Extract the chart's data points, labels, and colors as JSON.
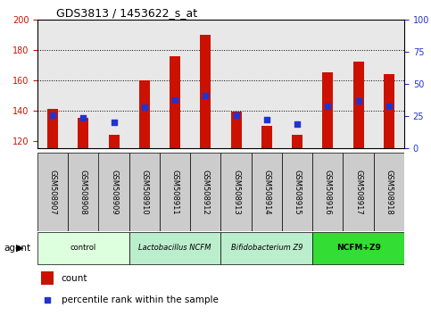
{
  "title": "GDS3813 / 1453622_s_at",
  "samples": [
    "GSM508907",
    "GSM508908",
    "GSM508909",
    "GSM508910",
    "GSM508911",
    "GSM508912",
    "GSM508913",
    "GSM508914",
    "GSM508915",
    "GSM508916",
    "GSM508917",
    "GSM508918"
  ],
  "count_values": [
    141,
    135,
    124,
    160,
    176,
    190,
    139,
    130,
    124,
    165,
    172,
    164
  ],
  "percentile_values": [
    137,
    135,
    132,
    142,
    147,
    150,
    137,
    134,
    131,
    143,
    146,
    143
  ],
  "ylim_left": [
    115,
    200
  ],
  "ylim_right": [
    0,
    100
  ],
  "yticks_left": [
    120,
    140,
    160,
    180,
    200
  ],
  "yticks_right": [
    0,
    25,
    50,
    75,
    100
  ],
  "bar_color": "#cc1100",
  "square_color": "#2233cc",
  "agent_groups": [
    {
      "label": "control",
      "start": 0,
      "end": 3,
      "color": "#ddffdd",
      "italic": false,
      "bold": false
    },
    {
      "label": "Lactobacillus NCFM",
      "start": 3,
      "end": 6,
      "color": "#bbeecc",
      "italic": true,
      "bold": false
    },
    {
      "label": "Bifidobacterium Z9",
      "start": 6,
      "end": 9,
      "color": "#bbeecc",
      "italic": true,
      "bold": false
    },
    {
      "label": "NCFM+Z9",
      "start": 9,
      "end": 12,
      "color": "#33dd33",
      "italic": false,
      "bold": true
    }
  ],
  "legend_count_label": "count",
  "legend_percentile_label": "percentile rank within the sample",
  "bar_width": 0.35,
  "square_size": 18,
  "tick_label_color_left": "#cc1100",
  "tick_label_color_right": "#2233cc",
  "plot_bg_color": "#e8e8e8",
  "sample_box_color": "#cccccc",
  "title_fontsize": 9,
  "tick_fontsize": 7,
  "label_fontsize": 6
}
